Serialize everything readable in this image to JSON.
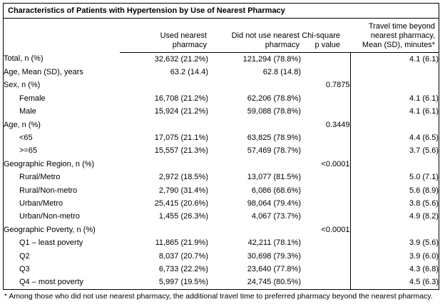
{
  "title": "Characteristics of Patients with Hypertension by Use of Nearest Pharmacy",
  "header": {
    "label_column": "",
    "used": "Used nearest\npharmacy",
    "not_used": "Did not use nearest\npharmacy",
    "p_value": "Chi-square\np value",
    "travel": "Travel time beyond\nnearest pharmacy,\nMean (SD), minutes*"
  },
  "rows": [
    {
      "label": "Total, n (%)",
      "indent": false,
      "used": "32,632 (21.2%)",
      "not_used": "121,294 (78.8%)",
      "p": "",
      "travel": "4.1 (6.1)"
    },
    {
      "label": "Age, Mean (SD), years",
      "indent": false,
      "used": "63.2 (14.4)",
      "not_used": "62.8 (14.8)",
      "p": "",
      "travel": ""
    },
    {
      "label": "Sex, n (%)",
      "indent": false,
      "used": "",
      "not_used": "",
      "p": "0.7875",
      "travel": ""
    },
    {
      "label": "Female",
      "indent": true,
      "used": "16,708 (21.2%)",
      "not_used": "62,206 (78.8%)",
      "p": "",
      "travel": "4.1 (6.1)"
    },
    {
      "label": "Male",
      "indent": true,
      "used": "15,924 (21.2%)",
      "not_used": "59,088 (78.8%)",
      "p": "",
      "travel": "4.1 (6.1)"
    },
    {
      "label": "Age, n (%)",
      "indent": false,
      "used": "",
      "not_used": "",
      "p": "0.3449",
      "travel": ""
    },
    {
      "label": "<65",
      "indent": true,
      "used": "17,075 (21.1%)",
      "not_used": "63,825 (78.9%)",
      "p": "",
      "travel": "4.4 (6.5)"
    },
    {
      "label": ">=65",
      "indent": true,
      "used": "15,557 (21.3%)",
      "not_used": "57,469 (78.7%)",
      "p": "",
      "travel": "3.7 (5.6)"
    },
    {
      "label": "Geographic Region, n (%)",
      "indent": false,
      "used": "",
      "not_used": "",
      "p": "<0.0001",
      "travel": ""
    },
    {
      "label": "Rural/Metro",
      "indent": true,
      "used": "2,972 (18.5%)",
      "not_used": "13,077 (81.5%)",
      "p": "",
      "travel": "5.0 (7.1)"
    },
    {
      "label": "Rural/Non-metro",
      "indent": true,
      "used": "2,790 (31.4%)",
      "not_used": "6,086 (68.6%)",
      "p": "",
      "travel": "5.6 (8.9)"
    },
    {
      "label": "Urban/Metro",
      "indent": true,
      "used": "25,415 (20.6%)",
      "not_used": "98,064 (79.4%)",
      "p": "",
      "travel": "3.8 (5.6)"
    },
    {
      "label": "Urban/Non-metro",
      "indent": true,
      "used": "1,455 (26.3%)",
      "not_used": "4,067 (73.7%)",
      "p": "",
      "travel": "4.9 (8.2)"
    },
    {
      "label": "Geographic Poverty, n (%)",
      "indent": false,
      "used": "",
      "not_used": "",
      "p": "<0.0001",
      "travel": ""
    },
    {
      "label": "Q1 – least poverty",
      "indent": true,
      "used": "11,865 (21.9%)",
      "not_used": "42,211 (78.1%)",
      "p": "",
      "travel": "3.9 (5.6)"
    },
    {
      "label": "Q2",
      "indent": true,
      "used": "8,037 (20.7%)",
      "not_used": "30,698 (79.3%)",
      "p": "",
      "travel": "3.9 (6.0)"
    },
    {
      "label": "Q3",
      "indent": true,
      "used": "6,733 (22.2%)",
      "not_used": "23,640 (77.8%)",
      "p": "",
      "travel": "4.3 (6.8)"
    },
    {
      "label": "Q4 – most poverty",
      "indent": true,
      "used": "5,997 (19.5%)",
      "not_used": "24,745 (80.5%)",
      "p": "",
      "travel": "4.5 (6.3)"
    }
  ],
  "footnote": "* Among those who did not use nearest pharmacy, the additional travel time to preferred pharmacy beyond the nearest pharmacy."
}
